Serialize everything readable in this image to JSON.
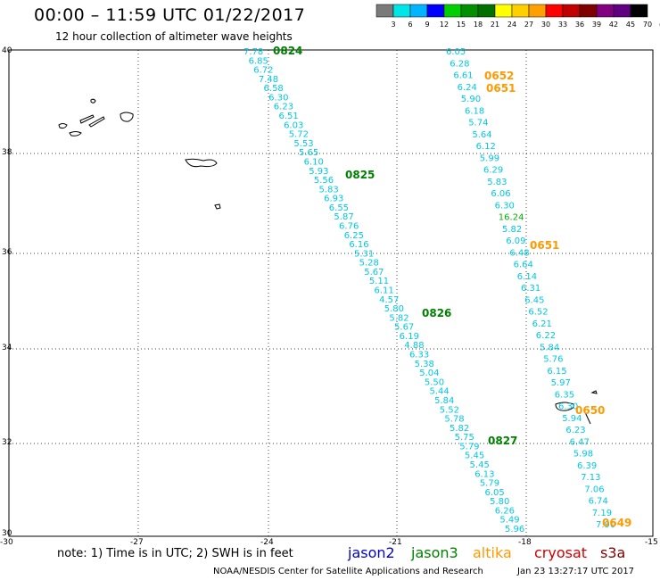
{
  "header": {
    "title": "00:00 – 11:59 UTC 01/22/2017",
    "subtitle": "12 hour collection of altimeter wave heights"
  },
  "colorbar": {
    "labels": [
      "3",
      "6",
      "9",
      "12",
      "15",
      "18",
      "21",
      "24",
      "27",
      "30",
      "33",
      "36",
      "39",
      "42",
      "45",
      "70",
      "(ft)"
    ],
    "colors": [
      "#7a7a7a",
      "#00e5e5",
      "#00b4ff",
      "#0000ff",
      "#00d000",
      "#009000",
      "#007000",
      "#ffff00",
      "#ffd000",
      "#ffa000",
      "#ff0000",
      "#c00000",
      "#800000",
      "#800080",
      "#600080",
      "#000000"
    ]
  },
  "map": {
    "lat_labels": [
      "40",
      "38",
      "36",
      "34",
      "32",
      "30"
    ],
    "lon_labels": [
      "-30",
      "-27",
      "-24",
      "-21",
      "-18",
      "-15"
    ]
  },
  "tracks": [
    {
      "id": "track-0824",
      "pass_time": "0824",
      "pass_color": "#008000",
      "value_color": "#00c8e0",
      "values": [
        "7.78",
        "6.85",
        "6.72",
        "7.48",
        "6.58",
        "6.30",
        "6.23",
        "6.51",
        "6.03",
        "5.72",
        "5.53",
        "5.65",
        "6.10",
        "5.93",
        "5.56",
        "5.83",
        "6.93",
        "6.55",
        "5.87",
        "6.76",
        "6.25",
        "6.16",
        "5.31",
        "5.28",
        "5.67",
        "5.11",
        "6.11",
        "4.57",
        "5.80",
        "5.82",
        "5.67",
        "6.19",
        "4.88",
        "6.33",
        "5.38",
        "5.04",
        "5.50",
        "5.44",
        "5.84",
        "5.52",
        "5.78",
        "5.82",
        "5.75",
        "5.79",
        "5.45",
        "5.45",
        "6.13",
        "5.79",
        "6.05",
        "5.80",
        "6.26",
        "5.49",
        "5.96"
      ],
      "extra_passes": [
        {
          "label": "0825"
        },
        {
          "label": "0826"
        },
        {
          "label": "0827"
        }
      ]
    },
    {
      "id": "track-0652",
      "pass_time": "0652",
      "pass_color": "#ff9900",
      "value_color": "#00c8e0",
      "values": [
        "6.05",
        "6.28",
        "6.61",
        "6.24",
        "5.90",
        "6.18",
        "5.74",
        "5.64",
        "6.12",
        "5.99",
        "6.29",
        "5.83",
        "6.06",
        "6.30",
        "16.24",
        "5.82",
        "6.09",
        "6.48",
        "6.64",
        "6.14",
        "6.31",
        "6.45",
        "6.52",
        "6.21",
        "6.22",
        "5.84",
        "5.76",
        "6.15",
        "5.97",
        "6.35",
        "6.30",
        "5.94",
        "6.23",
        "6.47",
        "5.98",
        "6.39",
        "7.13",
        "7.06",
        "6.74",
        "7.19",
        "7.90"
      ],
      "highlight_index": 14,
      "highlight_color": "#00b000",
      "extra_passes": [
        {
          "label": "0651"
        },
        {
          "label": "0651"
        },
        {
          "label": "0650"
        },
        {
          "label": "0649"
        }
      ]
    }
  ],
  "footer": {
    "note": "note: 1) Time is in UTC; 2) SWH is in feet",
    "satellites": [
      {
        "name": "jason2",
        "color": "#0000d0"
      },
      {
        "name": "jason3",
        "color": "#008000"
      },
      {
        "name": "altika",
        "color": "#ff9900"
      },
      {
        "name": "cryosat",
        "color": "#d00000"
      },
      {
        "name": "s3a",
        "color": "#800000"
      }
    ],
    "credit": "NOAA/NESDIS Center for Satellite Applications and Research",
    "timestamp": "Jan 23 13:27:17 UTC 2017"
  }
}
